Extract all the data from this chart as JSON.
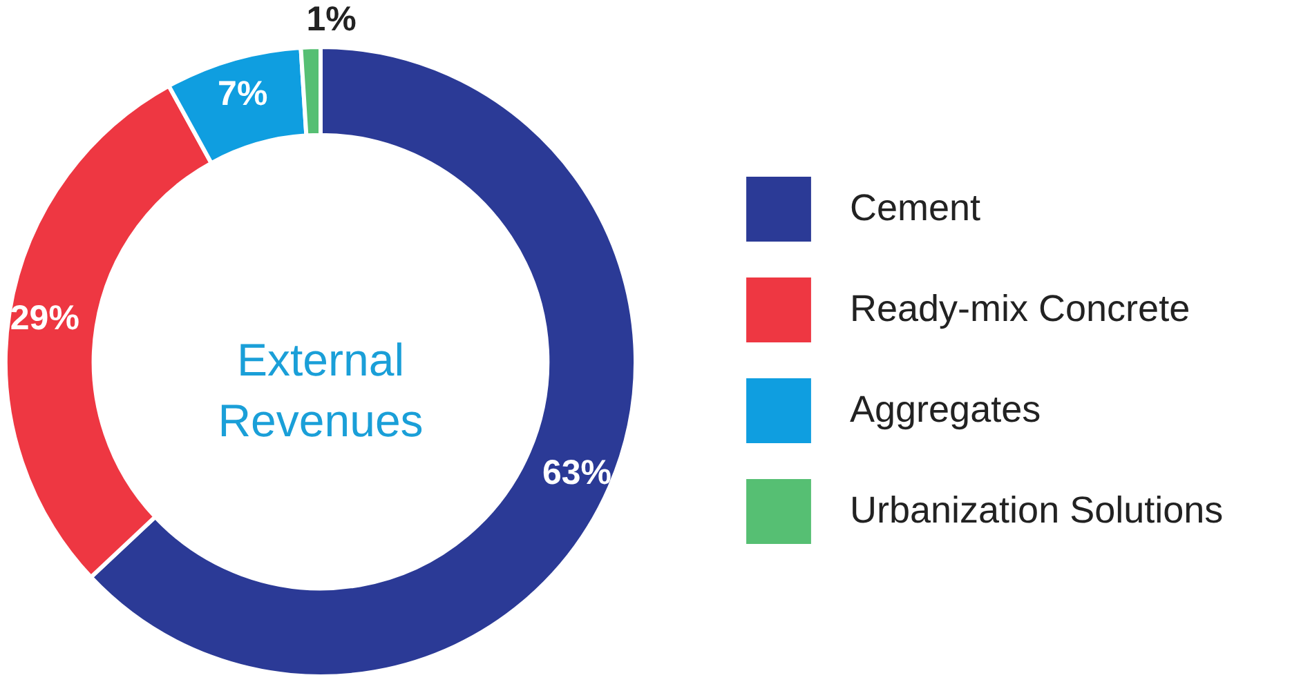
{
  "chart_data": {
    "type": "donut",
    "categories": [
      "Cement",
      "Ready-mix Concrete",
      "Aggregates",
      "Urbanization Solutions"
    ],
    "values": [
      63,
      29,
      7,
      1
    ],
    "colors": [
      "#2b3a96",
      "#ee3742",
      "#0f9ee0",
      "#56bf73"
    ],
    "annotations": [
      "External\nRevenues"
    ],
    "value_labels": [
      "63%",
      "29%",
      "7%",
      "1%"
    ],
    "legend": "right"
  }
}
